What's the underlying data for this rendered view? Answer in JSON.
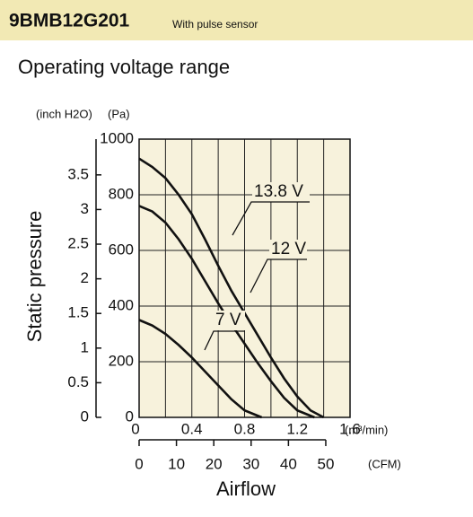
{
  "chart_data": {
    "type": "line",
    "model": "9BMB12G201",
    "model_note": "With pulse sensor",
    "title": "Operating voltage range",
    "ylabel": "Static pressure",
    "xlabel": "Airflow",
    "y_unit": "(Pa)",
    "y2_unit": "(inch H2O)",
    "x_unit": "(m³/min)",
    "x2_unit": "(CFM)",
    "xlim": [
      0,
      1.6
    ],
    "xticks": [
      0,
      0.4,
      0.8,
      1.2,
      1.6
    ],
    "xminor": [
      0.2,
      0.6,
      1.0,
      1.4
    ],
    "ylim": [
      0,
      1000
    ],
    "yticks": [
      0,
      200,
      400,
      600,
      800,
      1000
    ],
    "y2lim": [
      0,
      4.016
    ],
    "y2ticks": [
      0,
      0.5,
      1.0,
      1.5,
      2.0,
      2.5,
      3.0,
      3.5
    ],
    "x2lim": [
      0,
      56.5
    ],
    "x2ticks": [
      0,
      10,
      20,
      30,
      40,
      50
    ],
    "grid": true,
    "series": [
      {
        "name": "13.8 V",
        "color": "#111111",
        "x": [
          0,
          0.1,
          0.2,
          0.3,
          0.4,
          0.5,
          0.6,
          0.7,
          0.8,
          0.9,
          1.0,
          1.1,
          1.2,
          1.3,
          1.4
        ],
        "values": [
          930,
          900,
          860,
          800,
          730,
          640,
          545,
          455,
          375,
          295,
          215,
          140,
          75,
          25,
          0
        ]
      },
      {
        "name": "12 V",
        "color": "#111111",
        "x": [
          0,
          0.1,
          0.2,
          0.3,
          0.4,
          0.5,
          0.6,
          0.7,
          0.8,
          0.9,
          1.0,
          1.1,
          1.2,
          1.33
        ],
        "values": [
          760,
          740,
          700,
          640,
          570,
          490,
          410,
          335,
          265,
          195,
          130,
          70,
          25,
          0
        ]
      },
      {
        "name": "7 V",
        "color": "#111111",
        "x": [
          0,
          0.1,
          0.2,
          0.3,
          0.4,
          0.5,
          0.6,
          0.7,
          0.8,
          0.93
        ],
        "values": [
          350,
          330,
          300,
          260,
          215,
          165,
          115,
          65,
          25,
          0
        ]
      }
    ]
  }
}
